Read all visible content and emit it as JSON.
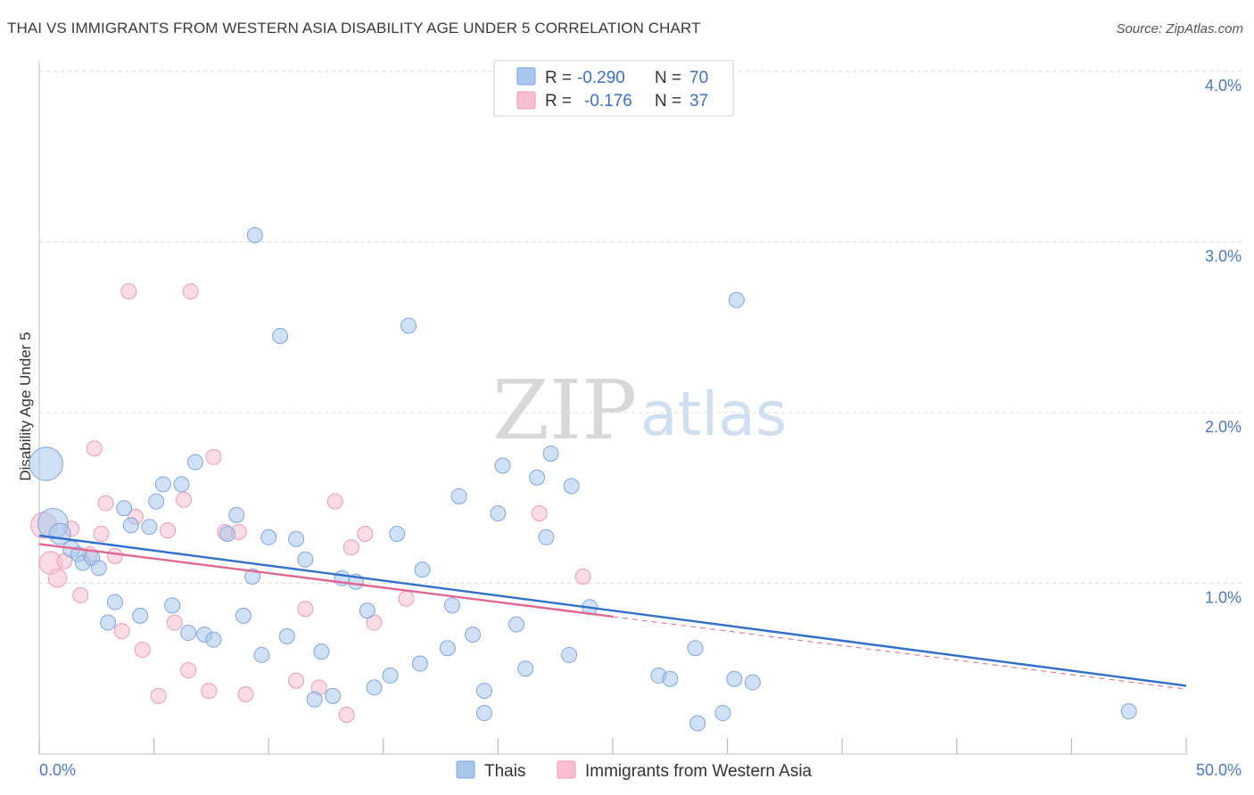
{
  "title": "THAI VS IMMIGRANTS FROM WESTERN ASIA DISABILITY AGE UNDER 5 CORRELATION CHART",
  "source": "Source: ZipAtlas.com",
  "watermark": {
    "zip": "ZIP",
    "atlas": "atlas"
  },
  "colors": {
    "blue_fill": "#a9c6ec",
    "blue_stroke": "#7ea6dd",
    "blue_line": "#2f6fce",
    "pink_fill": "#f7bfd0",
    "pink_stroke": "#e99bb5",
    "pink_line": "#e2668f",
    "axis_text": "#4a78c7",
    "grid": "#dddddd"
  },
  "legend_top": {
    "row1": {
      "r_label": "R =",
      "r_value": "-0.290",
      "n_label": "N =",
      "n_value": "70"
    },
    "row2": {
      "r_label": "R =",
      "r_value": "-0.176",
      "n_label": "N =",
      "n_value": "37"
    }
  },
  "chart_data": {
    "type": "scatter",
    "title": "THAI VS IMMIGRANTS FROM WESTERN ASIA DISABILITY AGE UNDER 5 CORRELATION CHART",
    "xlabel": "",
    "ylabel": "Disability Age Under 5",
    "xlim": [
      0,
      50
    ],
    "ylim": [
      0,
      4.2
    ],
    "x_tick_labels": [
      "0.0%",
      "50.0%"
    ],
    "y_ticks": [
      {
        "value": 1,
        "label": "1.0%"
      },
      {
        "value": 2,
        "label": "2.0%"
      },
      {
        "value": 3,
        "label": "3.0%"
      },
      {
        "value": 4,
        "label": "4.0%"
      }
    ],
    "grid": true,
    "legend": "top-center and bottom",
    "series": [
      {
        "name": "Thais",
        "color": "#a9c6ec",
        "r": -0.29,
        "n": 70,
        "trend": {
          "x0": 0,
          "y0": 1.28,
          "x1": 50,
          "y1": 0.4,
          "solid_until": 50
        },
        "points": [
          [
            0.3,
            1.7,
            2.2
          ],
          [
            0.6,
            1.35,
            2.0
          ],
          [
            0.9,
            1.29,
            1.4
          ],
          [
            1.4,
            1.2,
            1.1
          ],
          [
            1.7,
            1.17,
            1
          ],
          [
            1.9,
            1.12,
            1
          ],
          [
            2.3,
            1.15,
            1
          ],
          [
            2.6,
            1.09,
            1
          ],
          [
            3.0,
            0.77,
            1
          ],
          [
            3.3,
            0.89,
            1
          ],
          [
            3.7,
            1.44,
            1
          ],
          [
            4.0,
            1.34,
            1
          ],
          [
            4.4,
            0.81,
            1
          ],
          [
            4.8,
            1.33,
            1
          ],
          [
            5.1,
            1.48,
            1
          ],
          [
            5.4,
            1.58,
            1
          ],
          [
            5.8,
            0.87,
            1
          ],
          [
            6.2,
            1.58,
            1
          ],
          [
            6.5,
            0.71,
            1
          ],
          [
            6.8,
            1.71,
            1
          ],
          [
            7.2,
            0.7,
            1
          ],
          [
            7.6,
            0.67,
            1
          ],
          [
            8.2,
            1.29,
            1
          ],
          [
            8.6,
            1.4,
            1
          ],
          [
            8.9,
            0.81,
            1
          ],
          [
            9.3,
            1.04,
            1
          ],
          [
            9.4,
            3.04,
            1
          ],
          [
            9.7,
            0.58,
            1
          ],
          [
            10.0,
            1.27,
            1
          ],
          [
            10.5,
            2.45,
            1
          ],
          [
            10.8,
            0.69,
            1
          ],
          [
            11.2,
            1.26,
            1
          ],
          [
            11.6,
            1.14,
            1
          ],
          [
            12.0,
            0.32,
            1
          ],
          [
            12.3,
            0.6,
            1
          ],
          [
            12.8,
            0.34,
            1
          ],
          [
            13.2,
            1.03,
            1
          ],
          [
            13.8,
            1.01,
            1
          ],
          [
            14.3,
            0.84,
            1
          ],
          [
            14.6,
            0.39,
            1
          ],
          [
            15.3,
            0.46,
            1
          ],
          [
            15.6,
            1.29,
            1
          ],
          [
            16.1,
            2.51,
            1
          ],
          [
            16.6,
            0.53,
            1
          ],
          [
            16.7,
            1.08,
            1
          ],
          [
            17.8,
            0.62,
            1
          ],
          [
            18.0,
            0.87,
            1
          ],
          [
            18.3,
            1.51,
            1
          ],
          [
            18.9,
            0.7,
            1
          ],
          [
            19.4,
            0.24,
            1
          ],
          [
            19.4,
            0.37,
            1
          ],
          [
            20.0,
            1.41,
            1
          ],
          [
            20.2,
            1.69,
            1
          ],
          [
            20.8,
            0.76,
            1
          ],
          [
            21.2,
            0.5,
            1
          ],
          [
            21.7,
            1.62,
            1
          ],
          [
            22.1,
            1.27,
            1
          ],
          [
            22.3,
            1.76,
            1
          ],
          [
            23.1,
            0.58,
            1
          ],
          [
            23.2,
            1.57,
            1
          ],
          [
            24.0,
            0.86,
            1
          ],
          [
            27.0,
            0.46,
            1
          ],
          [
            27.5,
            0.44,
            1
          ],
          [
            28.6,
            0.62,
            1
          ],
          [
            28.7,
            0.18,
            1
          ],
          [
            29.8,
            0.24,
            1
          ],
          [
            30.3,
            0.44,
            1
          ],
          [
            30.4,
            2.66,
            1
          ],
          [
            31.1,
            0.42,
            1
          ],
          [
            47.5,
            0.25,
            1
          ]
        ]
      },
      {
        "name": "Immigrants from Western Asia",
        "color": "#f7bfd0",
        "r": -0.176,
        "n": 37,
        "trend": {
          "x0": 0,
          "y0": 1.23,
          "x1": 50,
          "y1": 0.38,
          "solid_until": 25
        },
        "points": [
          [
            0.2,
            1.34,
            1.7
          ],
          [
            0.5,
            1.12,
            1.5
          ],
          [
            0.8,
            1.03,
            1.2
          ],
          [
            1.1,
            1.13,
            1
          ],
          [
            1.4,
            1.32,
            1
          ],
          [
            1.8,
            0.93,
            1
          ],
          [
            2.2,
            1.17,
            1
          ],
          [
            2.4,
            1.79,
            1
          ],
          [
            2.7,
            1.29,
            1
          ],
          [
            2.9,
            1.47,
            1
          ],
          [
            3.3,
            1.16,
            1
          ],
          [
            3.6,
            0.72,
            1
          ],
          [
            3.9,
            2.71,
            1
          ],
          [
            4.2,
            1.39,
            1
          ],
          [
            4.5,
            0.61,
            1
          ],
          [
            5.2,
            0.34,
            1
          ],
          [
            5.6,
            1.31,
            1
          ],
          [
            5.9,
            0.77,
            1
          ],
          [
            6.3,
            1.49,
            1
          ],
          [
            6.5,
            0.49,
            1
          ],
          [
            6.6,
            2.71,
            1
          ],
          [
            7.4,
            0.37,
            1
          ],
          [
            7.6,
            1.74,
            1
          ],
          [
            8.1,
            1.3,
            1
          ],
          [
            8.7,
            1.3,
            1
          ],
          [
            9.0,
            0.35,
            1
          ],
          [
            11.2,
            0.43,
            1
          ],
          [
            11.6,
            0.85,
            1
          ],
          [
            12.2,
            0.39,
            1
          ],
          [
            12.9,
            1.48,
            1
          ],
          [
            13.4,
            0.23,
            1
          ],
          [
            13.6,
            1.21,
            1
          ],
          [
            14.2,
            1.29,
            1
          ],
          [
            14.6,
            0.77,
            1
          ],
          [
            16.0,
            0.91,
            1
          ],
          [
            21.8,
            1.41,
            1
          ],
          [
            23.7,
            1.04,
            1
          ]
        ]
      }
    ]
  },
  "bottom_legend": {
    "items": [
      "Thais",
      "Immigrants from Western Asia"
    ]
  }
}
